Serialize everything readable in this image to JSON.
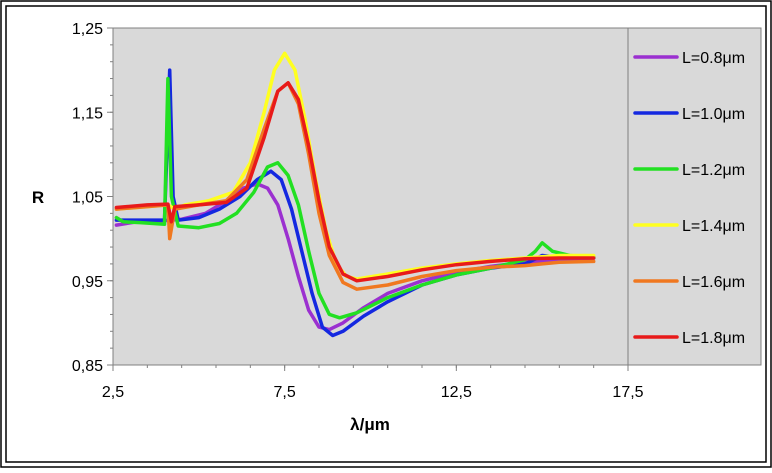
{
  "chart_data": {
    "type": "line",
    "title": "",
    "xlabel": "λ/μm",
    "ylabel": "R",
    "xlim": [
      2.5,
      17.5
    ],
    "ylim": [
      0.85,
      1.25
    ],
    "x_ticks": [
      "2,5",
      "7,5",
      "12,5",
      "17,5"
    ],
    "y_ticks": [
      "0,85",
      "0,95",
      "1,05",
      "1,15",
      "1,25"
    ],
    "x_tick_values": [
      2.5,
      7.5,
      12.5,
      17.5
    ],
    "y_tick_values": [
      0.85,
      0.95,
      1.05,
      1.15,
      1.25
    ],
    "grid": false,
    "legend_position": "right",
    "background": "#d9d9d9",
    "series": [
      {
        "name": "L=0.8μm",
        "color": "#9b30d0",
        "points": [
          [
            2.6,
            1.016
          ],
          [
            3.2,
            1.02
          ],
          [
            3.9,
            1.021
          ],
          [
            4.5,
            1.023
          ],
          [
            5.2,
            1.03
          ],
          [
            5.8,
            1.045
          ],
          [
            6.3,
            1.06
          ],
          [
            6.7,
            1.065
          ],
          [
            7.0,
            1.06
          ],
          [
            7.3,
            1.04
          ],
          [
            7.6,
            1.0
          ],
          [
            7.9,
            0.955
          ],
          [
            8.2,
            0.915
          ],
          [
            8.5,
            0.895
          ],
          [
            8.8,
            0.892
          ],
          [
            9.2,
            0.9
          ],
          [
            9.8,
            0.918
          ],
          [
            10.5,
            0.935
          ],
          [
            11.5,
            0.95
          ],
          [
            12.5,
            0.96
          ],
          [
            13.5,
            0.967
          ],
          [
            14.5,
            0.972
          ],
          [
            15.5,
            0.975
          ],
          [
            16.5,
            0.977
          ]
        ]
      },
      {
        "name": "L=1.0μm",
        "color": "#1428e0",
        "points": [
          [
            2.6,
            1.022
          ],
          [
            3.2,
            1.022
          ],
          [
            4.0,
            1.022
          ],
          [
            4.15,
            1.2
          ],
          [
            4.25,
            1.05
          ],
          [
            4.4,
            1.022
          ],
          [
            5.0,
            1.025
          ],
          [
            5.6,
            1.035
          ],
          [
            6.2,
            1.05
          ],
          [
            6.7,
            1.07
          ],
          [
            7.1,
            1.08
          ],
          [
            7.4,
            1.07
          ],
          [
            7.7,
            1.035
          ],
          [
            8.0,
            0.985
          ],
          [
            8.3,
            0.935
          ],
          [
            8.6,
            0.895
          ],
          [
            8.9,
            0.885
          ],
          [
            9.2,
            0.89
          ],
          [
            9.8,
            0.908
          ],
          [
            10.5,
            0.925
          ],
          [
            11.5,
            0.945
          ],
          [
            12.5,
            0.957
          ],
          [
            13.5,
            0.965
          ],
          [
            14.5,
            0.97
          ],
          [
            15.0,
            0.98
          ],
          [
            15.5,
            0.978
          ],
          [
            16.5,
            0.977
          ]
        ]
      },
      {
        "name": "L=1.2μm",
        "color": "#22e022",
        "points": [
          [
            2.6,
            1.025
          ],
          [
            2.8,
            1.02
          ],
          [
            3.3,
            1.019
          ],
          [
            4.0,
            1.017
          ],
          [
            4.1,
            1.19
          ],
          [
            4.2,
            1.05
          ],
          [
            4.4,
            1.015
          ],
          [
            5.0,
            1.013
          ],
          [
            5.6,
            1.018
          ],
          [
            6.1,
            1.03
          ],
          [
            6.6,
            1.055
          ],
          [
            7.0,
            1.085
          ],
          [
            7.3,
            1.09
          ],
          [
            7.6,
            1.075
          ],
          [
            7.9,
            1.04
          ],
          [
            8.2,
            0.985
          ],
          [
            8.5,
            0.935
          ],
          [
            8.8,
            0.91
          ],
          [
            9.1,
            0.906
          ],
          [
            9.6,
            0.912
          ],
          [
            10.5,
            0.93
          ],
          [
            11.5,
            0.945
          ],
          [
            12.5,
            0.957
          ],
          [
            13.5,
            0.965
          ],
          [
            14.5,
            0.975
          ],
          [
            14.8,
            0.985
          ],
          [
            15.0,
            0.995
          ],
          [
            15.3,
            0.985
          ],
          [
            15.8,
            0.98
          ],
          [
            16.5,
            0.978
          ]
        ]
      },
      {
        "name": "L=1.4μm",
        "color": "#ffff20",
        "points": [
          [
            2.6,
            1.035
          ],
          [
            3.5,
            1.038
          ],
          [
            4.1,
            1.04
          ],
          [
            4.3,
            1.035
          ],
          [
            4.6,
            1.04
          ],
          [
            5.3,
            1.045
          ],
          [
            6.0,
            1.055
          ],
          [
            6.5,
            1.09
          ],
          [
            6.9,
            1.15
          ],
          [
            7.2,
            1.2
          ],
          [
            7.5,
            1.22
          ],
          [
            7.8,
            1.2
          ],
          [
            8.1,
            1.14
          ],
          [
            8.4,
            1.07
          ],
          [
            8.7,
            1.01
          ],
          [
            9.0,
            0.97
          ],
          [
            9.3,
            0.955
          ],
          [
            9.6,
            0.952
          ],
          [
            10.5,
            0.958
          ],
          [
            11.5,
            0.965
          ],
          [
            12.5,
            0.97
          ],
          [
            13.5,
            0.974
          ],
          [
            14.5,
            0.977
          ],
          [
            15.5,
            0.98
          ],
          [
            16.5,
            0.98
          ]
        ]
      },
      {
        "name": "L=1.6μm",
        "color": "#f07820",
        "points": [
          [
            2.6,
            1.035
          ],
          [
            3.5,
            1.038
          ],
          [
            4.1,
            1.04
          ],
          [
            4.15,
            1.0
          ],
          [
            4.3,
            1.035
          ],
          [
            5.0,
            1.04
          ],
          [
            5.8,
            1.045
          ],
          [
            6.4,
            1.07
          ],
          [
            6.9,
            1.13
          ],
          [
            7.3,
            1.175
          ],
          [
            7.6,
            1.185
          ],
          [
            7.9,
            1.16
          ],
          [
            8.2,
            1.1
          ],
          [
            8.5,
            1.03
          ],
          [
            8.8,
            0.98
          ],
          [
            9.2,
            0.948
          ],
          [
            9.6,
            0.94
          ],
          [
            10.5,
            0.945
          ],
          [
            11.5,
            0.955
          ],
          [
            12.5,
            0.962
          ],
          [
            13.5,
            0.966
          ],
          [
            14.5,
            0.968
          ],
          [
            15.0,
            0.97
          ],
          [
            15.5,
            0.972
          ],
          [
            16.5,
            0.973
          ]
        ]
      },
      {
        "name": "L=1.8μm",
        "color": "#e81a1a",
        "points": [
          [
            2.6,
            1.037
          ],
          [
            3.5,
            1.04
          ],
          [
            4.1,
            1.041
          ],
          [
            4.2,
            1.02
          ],
          [
            4.3,
            1.038
          ],
          [
            5.0,
            1.04
          ],
          [
            5.8,
            1.043
          ],
          [
            6.4,
            1.06
          ],
          [
            6.9,
            1.12
          ],
          [
            7.3,
            1.175
          ],
          [
            7.6,
            1.185
          ],
          [
            7.9,
            1.165
          ],
          [
            8.2,
            1.11
          ],
          [
            8.5,
            1.045
          ],
          [
            8.8,
            0.99
          ],
          [
            9.2,
            0.958
          ],
          [
            9.6,
            0.95
          ],
          [
            10.5,
            0.955
          ],
          [
            11.5,
            0.963
          ],
          [
            12.5,
            0.969
          ],
          [
            13.5,
            0.973
          ],
          [
            14.5,
            0.976
          ],
          [
            15.5,
            0.977
          ],
          [
            16.5,
            0.977
          ]
        ]
      }
    ]
  }
}
